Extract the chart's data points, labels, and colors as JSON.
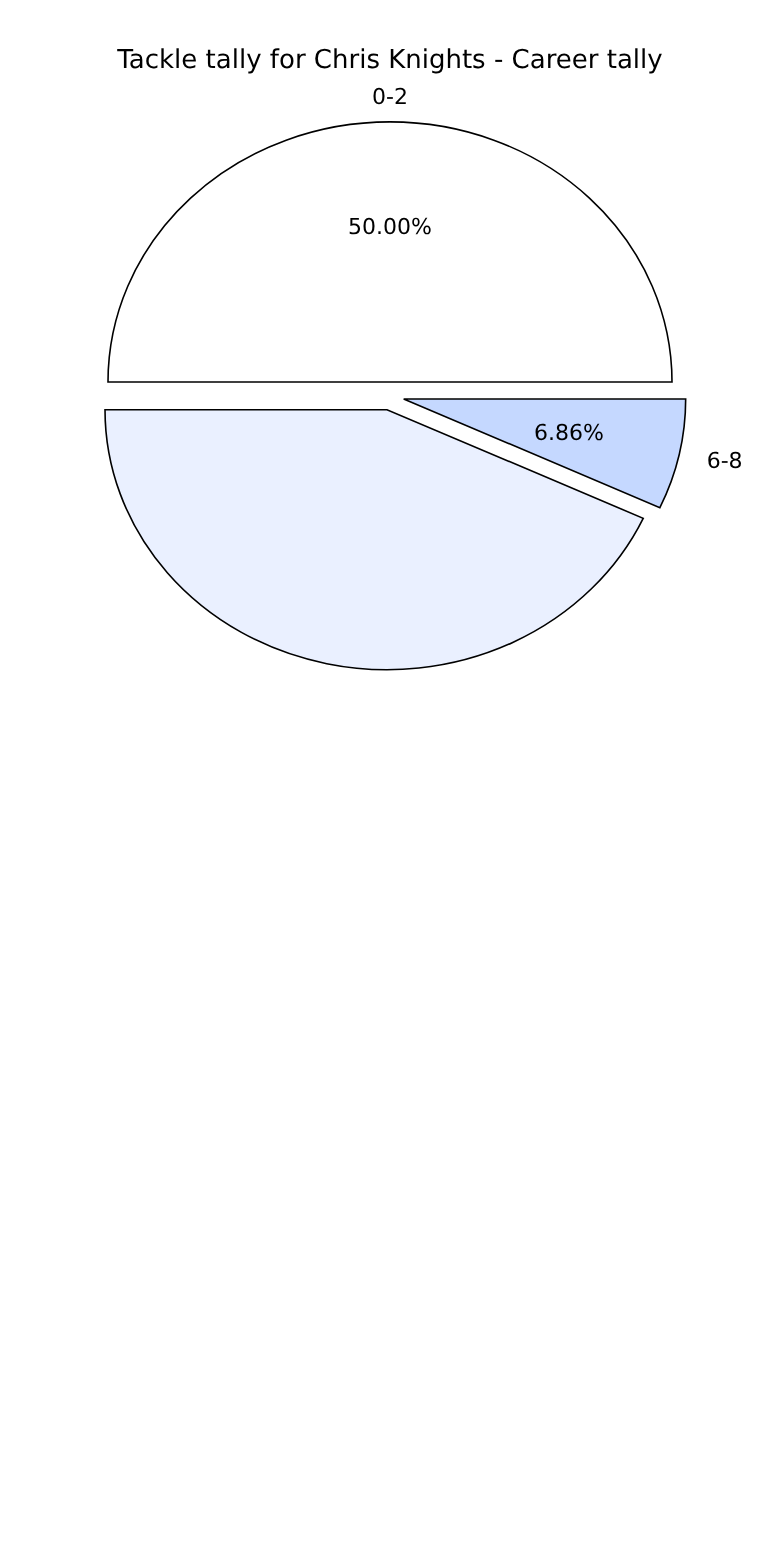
{
  "chart_data": {
    "type": "pie",
    "title": "Tackle tally for Chris Knights - Career tally",
    "categories": [
      "0-2",
      null,
      "6-8"
    ],
    "values": [
      50,
      43.14,
      6.86
    ],
    "value_labels": [
      "50.00%",
      null,
      "6.86%"
    ],
    "colors": [
      "#ffffff",
      "#eaf0ff",
      "#c5d8ff"
    ]
  }
}
